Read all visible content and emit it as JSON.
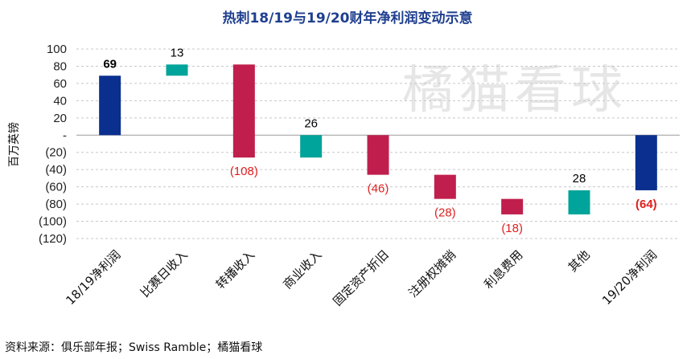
{
  "chart_data": {
    "type": "bar",
    "subtype": "waterfall",
    "title": "热刺18/19与19/20财年净利润变动示意",
    "ylabel": "百万英镑",
    "xlabel": "",
    "ylim": [
      -120,
      100
    ],
    "yticks": [
      100,
      80,
      60,
      40,
      20,
      0,
      -20,
      -40,
      -60,
      -80,
      -100,
      -120
    ],
    "ytick_labels": [
      "100",
      "80",
      "60",
      "40",
      "20",
      "-",
      "(20)",
      "(40)",
      "(60)",
      "(80)",
      "(100)",
      "(120)"
    ],
    "grid": true,
    "categories": [
      "18/19净利润",
      "比赛日收入",
      "转播收入",
      "商业收入",
      "固定资产折旧",
      "注册权摊销",
      "利息费用",
      "其他",
      "19/20净利润"
    ],
    "bars": [
      {
        "start": 0,
        "end": 69,
        "kind": "total",
        "label": "69",
        "label_color": "#000000",
        "bold": true
      },
      {
        "start": 69,
        "end": 82,
        "kind": "increase",
        "label": "13",
        "label_color": "#000000",
        "bold": false
      },
      {
        "start": 82,
        "end": -26,
        "kind": "decrease",
        "label": "(108)",
        "label_color": "#e02020",
        "bold": false
      },
      {
        "start": -26,
        "end": 0,
        "kind": "increase",
        "label": "26",
        "label_color": "#000000",
        "bold": false
      },
      {
        "start": 0,
        "end": -46,
        "kind": "decrease",
        "label": "(46)",
        "label_color": "#e02020",
        "bold": false
      },
      {
        "start": -46,
        "end": -74,
        "kind": "decrease",
        "label": "(28)",
        "label_color": "#e02020",
        "bold": false
      },
      {
        "start": -74,
        "end": -92,
        "kind": "decrease",
        "label": "(18)",
        "label_color": "#e02020",
        "bold": false
      },
      {
        "start": -92,
        "end": -64,
        "kind": "increase",
        "label": "28",
        "label_color": "#000000",
        "bold": false
      },
      {
        "start": 0,
        "end": -64,
        "kind": "total",
        "label": "(64)",
        "label_color": "#e02020",
        "bold": true
      }
    ],
    "colors": {
      "total": "#0a2f8f",
      "increase": "#00a49a",
      "decrease": "#c01f4d"
    },
    "watermark": "橘猫看球",
    "source": "资料来源：俱乐部年报；Swiss Ramble；橘猫看球"
  }
}
